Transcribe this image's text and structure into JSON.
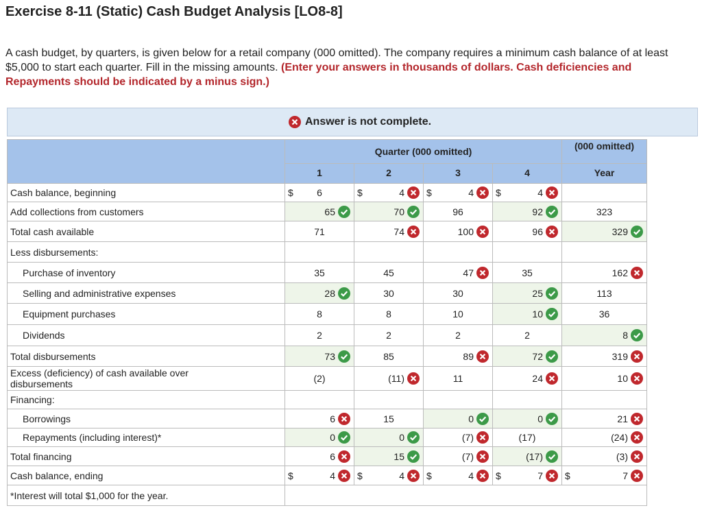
{
  "header": {
    "title": "Exercise 8-11 (Static) Cash Budget Analysis [LO8-8]",
    "intro": "A cash budget, by quarters, is given below for a retail company (000 omitted). The company requires a minimum cash balance of at least $5,000 to start each quarter. Fill in the missing amounts.",
    "requirement": "(Enter your answers in thousands of dollars. Cash deficiencies and Repayments should be indicated by a minus sign.)"
  },
  "banner": {
    "text": "Answer is not complete."
  },
  "table": {
    "group_header": "Quarter (000 omitted)",
    "year_header": "(000 omitted)",
    "columns": [
      "1",
      "2",
      "3",
      "4",
      "Year"
    ],
    "rows": [
      {
        "label": "Cash balance, beginning",
        "cells": [
          {
            "dollar": "$",
            "value": "6"
          },
          {
            "dollar": "$",
            "value": "4",
            "status": "incorrect"
          },
          {
            "dollar": "$",
            "value": "4",
            "status": "incorrect"
          },
          {
            "dollar": "$",
            "value": "4",
            "status": "incorrect"
          },
          null
        ]
      },
      {
        "label": "Add collections from customers",
        "cells": [
          {
            "value": "65",
            "status": "correct"
          },
          {
            "value": "70",
            "status": "correct"
          },
          {
            "value": "96"
          },
          {
            "value": "92",
            "status": "correct"
          },
          {
            "value": "323"
          }
        ]
      },
      {
        "label": "Total cash available",
        "cells": [
          {
            "value": "71"
          },
          {
            "value": "74",
            "status": "incorrect"
          },
          {
            "value": "100",
            "status": "incorrect"
          },
          {
            "value": "96",
            "status": "incorrect"
          },
          {
            "value": "329",
            "status": "correct"
          }
        ]
      },
      {
        "label": "Less disbursements:",
        "cells": [
          null,
          null,
          null,
          null,
          null
        ]
      },
      {
        "label": "Purchase of inventory",
        "indent": true,
        "cells": [
          {
            "value": "35"
          },
          {
            "value": "45"
          },
          {
            "value": "47",
            "status": "incorrect"
          },
          {
            "value": "35"
          },
          {
            "value": "162",
            "status": "incorrect"
          }
        ]
      },
      {
        "label": "Selling and administrative expenses",
        "indent": true,
        "cells": [
          {
            "value": "28",
            "status": "correct"
          },
          {
            "value": "30"
          },
          {
            "value": "30"
          },
          {
            "value": "25",
            "status": "correct"
          },
          {
            "value": "113"
          }
        ]
      },
      {
        "label": "Equipment purchases",
        "indent": true,
        "cells": [
          {
            "value": "8"
          },
          {
            "value": "8"
          },
          {
            "value": "10"
          },
          {
            "value": "10",
            "status": "correct"
          },
          {
            "value": "36"
          }
        ]
      },
      {
        "label": "Dividends",
        "indent": true,
        "cells": [
          {
            "value": "2"
          },
          {
            "value": "2"
          },
          {
            "value": "2"
          },
          {
            "value": "2"
          },
          {
            "value": "8",
            "status": "correct"
          }
        ]
      },
      {
        "label": "Total disbursements",
        "cells": [
          {
            "value": "73",
            "status": "correct"
          },
          {
            "value": "85"
          },
          {
            "value": "89",
            "status": "incorrect"
          },
          {
            "value": "72",
            "status": "correct"
          },
          {
            "value": "319",
            "status": "incorrect"
          }
        ]
      },
      {
        "label": "Excess (deficiency) of cash available over disbursements",
        "cells": [
          {
            "value": "(2)"
          },
          {
            "value": "(11)",
            "status": "incorrect"
          },
          {
            "value": "11"
          },
          {
            "value": "24",
            "status": "incorrect"
          },
          {
            "value": "10",
            "status": "incorrect"
          }
        ]
      },
      {
        "label": "Financing:",
        "cells": [
          null,
          null,
          null,
          null,
          null
        ]
      },
      {
        "label": "Borrowings",
        "indent": true,
        "cells": [
          {
            "value": "6",
            "status": "incorrect"
          },
          {
            "value": "15"
          },
          {
            "value": "0",
            "status": "correct"
          },
          {
            "value": "0",
            "status": "correct"
          },
          {
            "value": "21",
            "status": "incorrect"
          }
        ]
      },
      {
        "label": "Repayments (including interest)*",
        "indent": true,
        "cells": [
          {
            "value": "0",
            "status": "correct"
          },
          {
            "value": "0",
            "status": "correct"
          },
          {
            "value": "(7)",
            "status": "incorrect"
          },
          {
            "value": "(17)"
          },
          {
            "value": "(24)",
            "status": "incorrect"
          }
        ]
      },
      {
        "label": "Total financing",
        "cells": [
          {
            "value": "6",
            "status": "incorrect"
          },
          {
            "value": "15",
            "status": "correct"
          },
          {
            "value": "(7)",
            "status": "incorrect"
          },
          {
            "value": "(17)",
            "status": "correct"
          },
          {
            "value": "(3)",
            "status": "incorrect"
          }
        ]
      },
      {
        "label": "Cash balance, ending",
        "cells": [
          {
            "dollar": "$",
            "value": "4",
            "status": "incorrect"
          },
          {
            "dollar": "$",
            "value": "4",
            "status": "incorrect"
          },
          {
            "dollar": "$",
            "value": "4",
            "status": "incorrect"
          },
          {
            "dollar": "$",
            "value": "7",
            "status": "incorrect"
          },
          {
            "dollar": "$",
            "value": "7",
            "status": "incorrect"
          }
        ]
      }
    ],
    "footnote": "*Interest will total $1,000 for the year."
  }
}
